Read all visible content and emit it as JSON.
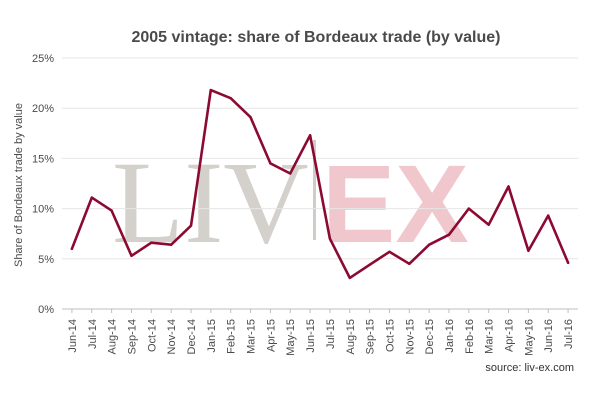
{
  "chart_data": {
    "type": "line",
    "title": "2005 vintage: share of Bordeaux trade (by value)",
    "ylabel": "Share of Bordeaux trade by value",
    "xlabel": "",
    "ylim": [
      0,
      25
    ],
    "yticks": [
      "0%",
      "5%",
      "10%",
      "15%",
      "20%",
      "25%"
    ],
    "categories": [
      "Jun-14",
      "Jul-14",
      "Aug-14",
      "Sep-14",
      "Oct-14",
      "Nov-14",
      "Dec-14",
      "Jan-15",
      "Feb-15",
      "Mar-15",
      "Apr-15",
      "May-15",
      "Jun-15",
      "Jul-15",
      "Aug-15",
      "Sep-15",
      "Oct-15",
      "Nov-15",
      "Dec-15",
      "Jan-16",
      "Feb-16",
      "Mar-16",
      "Apr-16",
      "May-16",
      "Jun-16",
      "Jul-16"
    ],
    "series": [
      {
        "values": [
          6.0,
          11.1,
          9.8,
          5.3,
          6.6,
          6.4,
          8.3,
          21.8,
          21.0,
          19.1,
          14.5,
          13.5,
          17.3,
          7.0,
          3.1,
          4.4,
          5.7,
          4.5,
          6.4,
          7.4,
          10.0,
          8.4,
          12.2,
          5.8,
          9.3,
          4.6
        ],
        "color": "#8c0a32"
      }
    ],
    "grid": true,
    "legend": "none"
  },
  "watermark": {
    "left": "LIV",
    "right": "EX",
    "left_color": "#d0ccc7",
    "right_color": "#efc2c8"
  },
  "source": "source: liv-ex.com"
}
